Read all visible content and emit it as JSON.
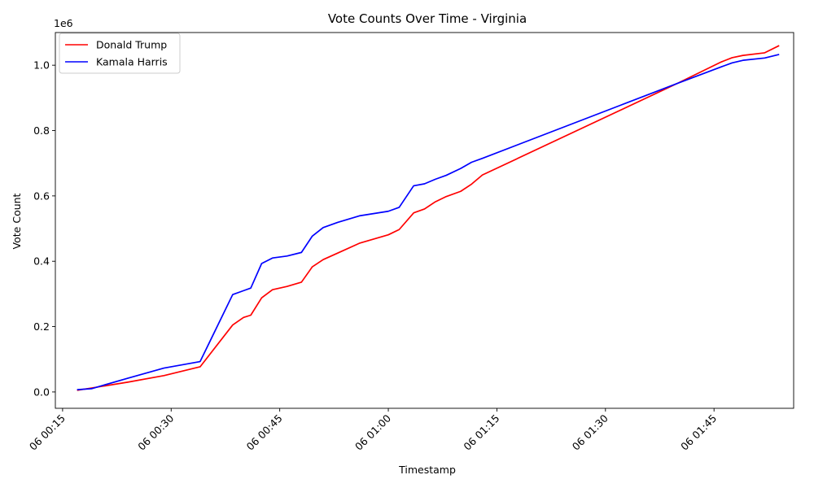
{
  "chart_data": {
    "type": "line",
    "title": "Vote Counts Over Time - Virginia",
    "xlabel": "Timestamp",
    "ylabel": "Vote Count",
    "y_offset_label": "1e6",
    "x_tick_labels": [
      "06 00:15",
      "06 00:30",
      "06 00:45",
      "06 01:00",
      "06 01:15",
      "06 01:30",
      "06 01:45"
    ],
    "y_tick_labels": [
      "0.0",
      "0.2",
      "0.4",
      "0.6",
      "0.8",
      "1.0"
    ],
    "xlim": [
      "06 00:14:00",
      "06 01:56:00"
    ],
    "ylim": [
      -0.05,
      1.1
    ],
    "grid": false,
    "legend_position": "top-left",
    "series": [
      {
        "name": "Donald Trump",
        "color": "#ff0000",
        "x": [
          "06 00:17:00",
          "06 00:19:00",
          "06 00:24:00",
          "06 00:29:00",
          "06 00:34:00",
          "06 00:38:30",
          "06 00:40:00",
          "06 00:41:00",
          "06 00:42:30",
          "06 00:44:00",
          "06 00:46:00",
          "06 00:48:00",
          "06 00:49:30",
          "06 00:51:00",
          "06 00:53:00",
          "06 00:56:00",
          "06 01:00:00",
          "06 01:01:30",
          "06 01:03:30",
          "06 01:05:00",
          "06 01:06:30",
          "06 01:08:00",
          "06 01:10:00",
          "06 01:11:30",
          "06 01:13:00",
          "06 01:40:00",
          "06 01:46:00",
          "06 01:47:30",
          "06 01:49:00",
          "06 01:52:00",
          "06 01:54:00"
        ],
        "values": [
          0.005,
          0.012,
          0.03,
          0.05,
          0.077,
          0.205,
          0.228,
          0.235,
          0.288,
          0.313,
          0.323,
          0.336,
          0.383,
          0.405,
          0.425,
          0.455,
          0.481,
          0.497,
          0.548,
          0.56,
          0.582,
          0.598,
          0.614,
          0.636,
          0.664,
          0.945,
          1.01,
          1.023,
          1.03,
          1.038,
          1.06
        ]
      },
      {
        "name": "Kamala Harris",
        "color": "#0000ff",
        "x": [
          "06 00:17:00",
          "06 00:19:00",
          "06 00:24:00",
          "06 00:29:00",
          "06 00:34:00",
          "06 00:38:30",
          "06 00:40:00",
          "06 00:41:00",
          "06 00:42:30",
          "06 00:44:00",
          "06 00:46:00",
          "06 00:48:00",
          "06 00:49:30",
          "06 00:51:00",
          "06 00:53:00",
          "06 00:56:00",
          "06 01:00:00",
          "06 01:01:30",
          "06 01:03:30",
          "06 01:05:00",
          "06 01:06:30",
          "06 01:08:00",
          "06 01:10:00",
          "06 01:11:30",
          "06 01:13:00",
          "06 01:40:00",
          "06 01:46:00",
          "06 01:47:30",
          "06 01:49:00",
          "06 01:52:00",
          "06 01:54:00"
        ],
        "values": [
          0.007,
          0.01,
          0.042,
          0.073,
          0.093,
          0.298,
          0.31,
          0.318,
          0.393,
          0.41,
          0.416,
          0.427,
          0.477,
          0.503,
          0.519,
          0.539,
          0.553,
          0.565,
          0.631,
          0.637,
          0.651,
          0.663,
          0.684,
          0.703,
          0.715,
          0.945,
          0.995,
          1.007,
          1.015,
          1.022,
          1.033
        ]
      }
    ]
  }
}
